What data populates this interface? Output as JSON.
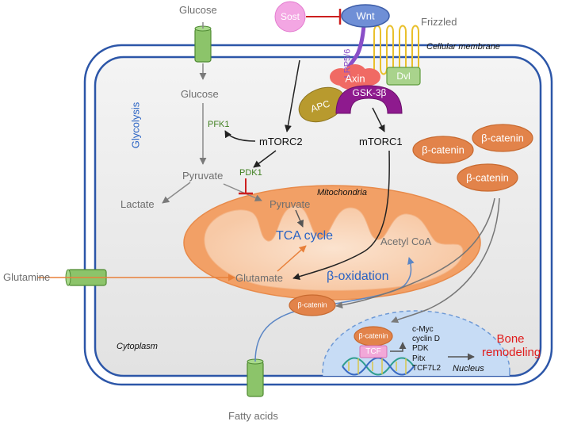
{
  "labels": {
    "sost": "Sost",
    "wnt": "Wnt",
    "frizzled": "Frizzled",
    "lrp": "LRP5/6",
    "cellular_membrane": "Cellular membrane",
    "axin": "Axin",
    "dvl": "Dvl",
    "gsk3b": "GSK-3β",
    "apc": "APC",
    "glucose_outside": "Glucose",
    "glucose_inside": "Glucose",
    "glycolysis": "Glycolysis",
    "pfk1": "PFK1",
    "mtorc2": "mTORC2",
    "mtorc1": "mTORC1",
    "pyruvate_cyto": "Pyruvate",
    "pdk1": "PDK1",
    "lactate": "Lactate",
    "mitochondria": "Mitochondria",
    "pyruvate_mito": "Pyruvate",
    "tca": "TCA cycle",
    "acetyl_coa": "Acetyl CoA",
    "glutamine": "Glutamine",
    "glutamate": "Glutamate",
    "beta_oxidation": "β-oxidation",
    "beta_catenin_1": "β-catenin",
    "beta_catenin_2": "β-catenin",
    "beta_catenin_3": "β-catenin",
    "beta_catenin_small": "β-catenin",
    "beta_catenin_nucleus": "β-catenin",
    "tcf": "TCF",
    "cytoplasm": "Cytoplasm",
    "nucleus": "Nucleus",
    "fatty_acids": "Fatty acids",
    "bone_remodeling_1": "Bone",
    "bone_remodeling_2": "remodeling"
  },
  "target_genes": [
    "c-Myc",
    "cyclin D",
    "PDK",
    "Pitx",
    "TCF7L2"
  ],
  "colors": {
    "membrane_blue": "#2c56a8",
    "cell_fill": "#ececec",
    "mito_orange": "#f2a066",
    "catenin_orange": "#e2834a",
    "gsk_purple": "#8e1a8e",
    "apc_olive": "#b89a2e",
    "wnt_blue": "#6f8fd6",
    "sost_pink": "#f3a6e3",
    "dvl_green": "#a9d38c",
    "channel_green": "#8cc46a",
    "axin_red": "#f06a64",
    "inhibit_red": "#cc1f1f",
    "nucleus_blue": "#c7dcf5"
  }
}
